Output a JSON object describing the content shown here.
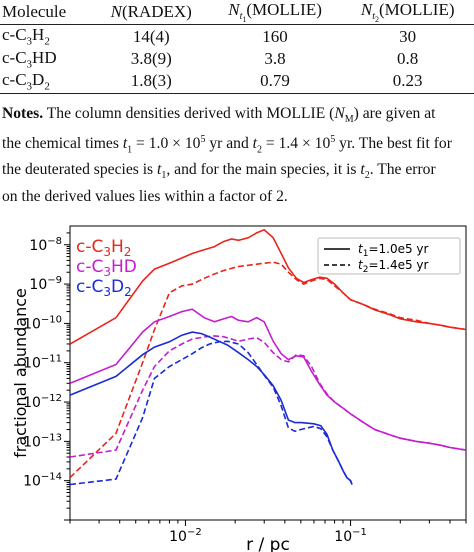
{
  "table": {
    "headers": [
      "Molecule",
      "N(RADEX)",
      "N_t1(MOLLIE)",
      "N_t2(MOLLIE)"
    ],
    "rows": [
      {
        "molecule": "c-C3H2",
        "radex": "14(4)",
        "t1": "160",
        "t2": "30"
      },
      {
        "molecule": "c-C3HD",
        "radex": "3.8(9)",
        "t1": "3.8",
        "t2": "0.8"
      },
      {
        "molecule": "c-C3D2",
        "radex": "1.8(3)",
        "t1": "0.79",
        "t2": "0.23"
      }
    ]
  },
  "notes": {
    "label": "Notes.",
    "lines": [
      "The column densities derived with MOLLIE (N_M) are given at",
      "the chemical times t1 = 1.0 × 10^5 yr and t2 = 1.4 × 10^5 yr. The best fit for",
      "the deuterated species is t1, and for the main species, it is t2. The error",
      "on the derived values lies within a factor of 2."
    ]
  },
  "chart_data": {
    "type": "line",
    "xlabel": "r / pc",
    "ylabel": "fractional abundance",
    "xscale": "log",
    "yscale": "log",
    "xlim": [
      0.002,
      0.5
    ],
    "ylim": [
      1e-15,
      3e-08
    ],
    "xticks": [
      "10^-2",
      "10^-1"
    ],
    "yticks": [
      "10^-14",
      "10^-13",
      "10^-12",
      "10^-11",
      "10^-10",
      "10^-9",
      "10^-8"
    ],
    "species_labels": [
      "c-C3H2",
      "c-C3HD",
      "c-C3D2"
    ],
    "legend": {
      "placement": "top-right",
      "entries": [
        "t1=1.0e5 yr",
        "t2=1.4e5 yr"
      ]
    },
    "series": [
      {
        "name": "c-C3H2",
        "time": "t1",
        "color": "#e8261c",
        "style": "solid",
        "x": [
          0.002,
          0.0038,
          0.0055,
          0.0065,
          0.008,
          0.0095,
          0.011,
          0.013,
          0.015,
          0.017,
          0.019,
          0.021,
          0.024,
          0.027,
          0.03,
          0.034,
          0.038,
          0.042,
          0.047,
          0.052,
          0.058,
          0.065,
          0.072,
          0.08,
          0.09,
          0.1,
          0.12,
          0.14,
          0.17,
          0.2,
          0.25,
          0.3,
          0.35,
          0.4,
          0.5
        ],
        "y": [
          3e-11,
          1.4e-10,
          1.2e-09,
          2.4e-09,
          3.4e-09,
          4.6e-09,
          6e-09,
          7.5e-09,
          9e-09,
          1.2e-08,
          1.4e-08,
          1.3e-08,
          1.5e-08,
          2e-08,
          2.4e-08,
          1.5e-08,
          6e-09,
          2.6e-09,
          1.4e-09,
          1.1e-09,
          1.3e-09,
          1.5e-09,
          1.4e-09,
          1e-09,
          6e-10,
          4e-10,
          3e-10,
          2.2e-10,
          1.7e-10,
          1.3e-10,
          1.1e-10,
          1e-10,
          9e-11,
          8e-11,
          7e-11
        ]
      },
      {
        "name": "c-C3H2",
        "time": "t2",
        "color": "#e8261c",
        "style": "dashed",
        "x": [
          0.002,
          0.0038,
          0.0055,
          0.0065,
          0.008,
          0.0095,
          0.011,
          0.013,
          0.015,
          0.017,
          0.019,
          0.021,
          0.024,
          0.027,
          0.03,
          0.034,
          0.038,
          0.042,
          0.047,
          0.052,
          0.058,
          0.065,
          0.072,
          0.08,
          0.09,
          0.1,
          0.12,
          0.14,
          0.17,
          0.2,
          0.25,
          0.3,
          0.35,
          0.4,
          0.5
        ],
        "y": [
          1.2e-14,
          1.6e-13,
          1e-11,
          7e-11,
          6e-10,
          9e-10,
          1e-09,
          1.4e-09,
          1.8e-09,
          2.2e-09,
          2.5e-09,
          2.8e-09,
          3e-09,
          3.2e-09,
          3.4e-09,
          3.6e-09,
          3.2e-09,
          2e-09,
          1.3e-09,
          1e-09,
          1.2e-09,
          1.4e-09,
          1.3e-09,
          9e-10,
          6e-10,
          4e-10,
          3e-10,
          2.3e-10,
          1.8e-10,
          1.4e-10,
          1.2e-10,
          1e-10,
          9e-11,
          8e-11,
          7e-11
        ]
      },
      {
        "name": "c-C3HD",
        "time": "t1",
        "color": "#c41ed0",
        "style": "solid",
        "x": [
          0.002,
          0.0038,
          0.0055,
          0.0065,
          0.008,
          0.0095,
          0.011,
          0.013,
          0.015,
          0.017,
          0.019,
          0.021,
          0.024,
          0.027,
          0.03,
          0.034,
          0.038,
          0.042,
          0.047,
          0.052,
          0.058,
          0.065,
          0.072,
          0.08,
          0.09,
          0.1,
          0.12,
          0.14,
          0.17,
          0.2,
          0.25,
          0.3,
          0.35,
          0.4,
          0.5
        ],
        "y": [
          3e-12,
          9e-12,
          6e-11,
          1.1e-10,
          1.5e-10,
          2e-10,
          2.3e-10,
          1.4e-10,
          1.1e-10,
          1.3e-10,
          1.5e-10,
          1.2e-10,
          1.1e-10,
          1.4e-10,
          1.1e-10,
          3.5e-11,
          1.7e-11,
          1.2e-11,
          1.5e-11,
          1.4e-11,
          6e-12,
          2.8e-12,
          1.5e-12,
          1e-12,
          7e-13,
          5e-13,
          3e-13,
          2e-13,
          1.5e-13,
          1.2e-13,
          1e-13,
          9e-14,
          8e-14,
          7e-14,
          6e-14
        ]
      },
      {
        "name": "c-C3HD",
        "time": "t2",
        "color": "#c41ed0",
        "style": "dashed",
        "x": [
          0.002,
          0.0038,
          0.0055,
          0.0065,
          0.008,
          0.0095,
          0.011,
          0.013,
          0.015,
          0.017,
          0.019,
          0.021,
          0.024,
          0.027,
          0.03,
          0.034,
          0.038,
          0.042,
          0.047,
          0.052,
          0.058,
          0.065,
          0.072,
          0.08,
          0.09,
          0.1,
          0.12,
          0.14,
          0.17,
          0.2,
          0.25,
          0.3,
          0.35,
          0.4,
          0.5
        ],
        "y": [
          4e-14,
          6e-14,
          2e-12,
          8e-12,
          2e-11,
          3e-11,
          4e-11,
          4.5e-11,
          4.8e-11,
          4.6e-11,
          4e-11,
          3.5e-11,
          4e-11,
          4.3e-11,
          3.3e-11,
          1.8e-11,
          1.2e-11,
          1.05e-11,
          1.6e-11,
          1.5e-11,
          8e-12,
          3e-12,
          1.6e-12,
          1e-12,
          7e-13,
          5e-13,
          3e-13,
          2e-13,
          1.5e-13,
          1.2e-13,
          1e-13,
          9e-14,
          8e-14,
          7e-14,
          6e-14
        ]
      },
      {
        "name": "c-C3D2",
        "time": "t1",
        "color": "#1a2bd6",
        "style": "solid",
        "x": [
          0.002,
          0.0038,
          0.0055,
          0.0065,
          0.008,
          0.0095,
          0.011,
          0.0125,
          0.014,
          0.016,
          0.018,
          0.021,
          0.024,
          0.027,
          0.03,
          0.034,
          0.038,
          0.042,
          0.046,
          0.05,
          0.055,
          0.06,
          0.066,
          0.072,
          0.078,
          0.085,
          0.09,
          0.095,
          0.1,
          0.102
        ],
        "y": [
          1.5e-12,
          4.5e-12,
          1.6e-11,
          2.5e-11,
          3.4e-11,
          5e-11,
          6e-11,
          5.5e-11,
          4.5e-11,
          3.5e-11,
          2.8e-11,
          1.8e-11,
          1.2e-11,
          8e-12,
          5e-12,
          2.6e-12,
          1.1e-12,
          3.5e-13,
          3e-13,
          3e-13,
          2.9e-13,
          2.8e-13,
          2.5e-13,
          1.5e-13,
          6e-14,
          3e-14,
          1.8e-14,
          1.2e-14,
          1e-14,
          8e-15
        ]
      },
      {
        "name": "c-C3D2",
        "time": "t2",
        "color": "#1a2bd6",
        "style": "dashed",
        "x": [
          0.002,
          0.0038,
          0.0055,
          0.0065,
          0.008,
          0.0095,
          0.011,
          0.0125,
          0.014,
          0.016,
          0.018,
          0.021,
          0.024,
          0.027,
          0.03,
          0.034,
          0.038,
          0.042,
          0.046,
          0.05,
          0.055,
          0.06,
          0.066,
          0.072,
          0.078,
          0.085,
          0.09,
          0.095,
          0.1,
          0.102
        ],
        "y": [
          8e-15,
          1.1e-14,
          4e-13,
          4e-12,
          8e-12,
          1.2e-11,
          1.7e-11,
          2.4e-11,
          3e-11,
          3.4e-11,
          3.5e-11,
          3e-11,
          1.8e-11,
          9e-12,
          4.8e-12,
          2.4e-12,
          8e-13,
          2.2e-13,
          1.8e-13,
          2e-13,
          2.2e-13,
          2.4e-13,
          2.1e-13,
          1.3e-13,
          6e-14,
          3e-14,
          1.8e-14,
          1.2e-14,
          1e-14,
          8e-15
        ]
      }
    ]
  }
}
